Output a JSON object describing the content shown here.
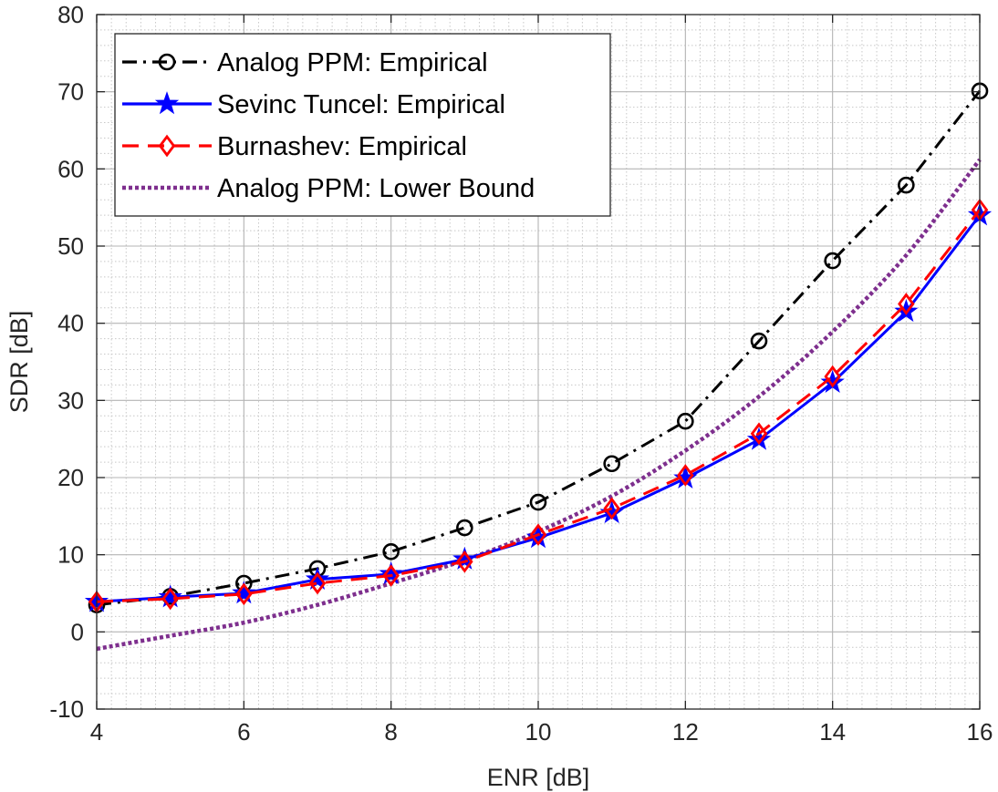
{
  "chart_data": {
    "type": "line",
    "title": "",
    "xlabel": "ENR [dB]",
    "ylabel": "SDR [dB]",
    "xlim": [
      4,
      16
    ],
    "ylim": [
      -10,
      80
    ],
    "xticks": [
      "4",
      "6",
      "8",
      "10",
      "12",
      "14",
      "16"
    ],
    "yticks": [
      "-10",
      "0",
      "10",
      "20",
      "30",
      "40",
      "50",
      "60",
      "70",
      "80"
    ],
    "grid": true,
    "minor_grid": true,
    "legend_position": "top-left",
    "series": [
      {
        "name": "Analog PPM: Empirical",
        "color": "#000000",
        "line_style": "dash-dot",
        "marker": "circle",
        "x": [
          4,
          5,
          6,
          7,
          8,
          9,
          10,
          11,
          12,
          13,
          14,
          15,
          16
        ],
        "y": [
          3.5,
          4.6,
          6.3,
          8.2,
          10.4,
          13.5,
          16.8,
          21.8,
          27.3,
          37.7,
          48.1,
          57.9,
          70.1
        ]
      },
      {
        "name": "Sevinc Tuncel: Empirical",
        "color": "#0000ff",
        "line_style": "solid",
        "marker": "star",
        "x": [
          4,
          5,
          6,
          7,
          8,
          9,
          10,
          11,
          12,
          13,
          14,
          15,
          16
        ],
        "y": [
          3.9,
          4.5,
          5.0,
          6.8,
          7.5,
          9.4,
          12.2,
          15.4,
          19.9,
          24.9,
          32.3,
          41.5,
          54.0
        ]
      },
      {
        "name": "Burnashev: Empirical",
        "color": "#ff0000",
        "line_style": "dashed",
        "marker": "diamond",
        "x": [
          4,
          5,
          6,
          7,
          8,
          9,
          10,
          11,
          12,
          13,
          14,
          15,
          16
        ],
        "y": [
          3.9,
          4.3,
          4.9,
          6.3,
          7.3,
          9.1,
          12.6,
          16.0,
          20.3,
          25.7,
          33.1,
          42.5,
          54.7
        ]
      },
      {
        "name": "Analog PPM: Lower Bound",
        "color": "#7e2f8e",
        "line_style": "dotted",
        "marker": "none",
        "x": [
          4,
          5,
          6,
          7,
          8,
          9,
          10,
          11,
          12,
          13,
          14,
          15,
          16
        ],
        "y": [
          -2.2,
          -0.5,
          1.2,
          3.5,
          6.3,
          9.3,
          13.0,
          17.6,
          23.5,
          30.5,
          38.9,
          48.8,
          61.2
        ]
      }
    ]
  }
}
